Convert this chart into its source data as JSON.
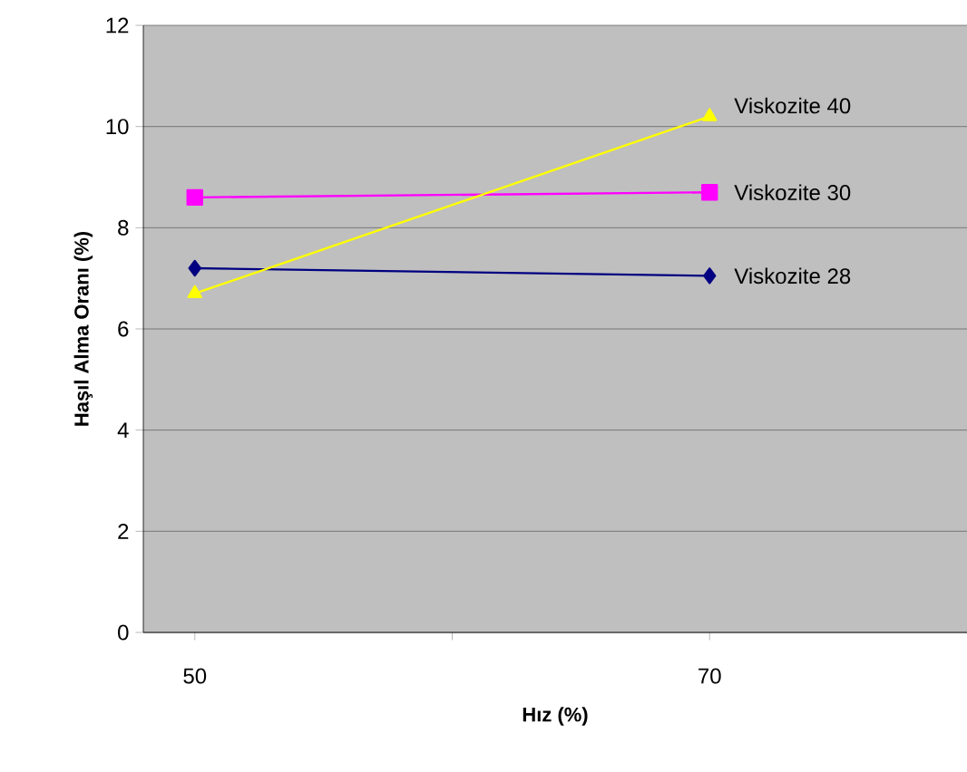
{
  "chart_data": {
    "type": "line",
    "xlabel": "Hız (%)",
    "ylabel": "Haşıl Alma Oranı (%)",
    "x": [
      50,
      70
    ],
    "series": [
      {
        "name": "Viskozite 28",
        "color": "#000080",
        "marker": "diamond",
        "values": [
          7.2,
          7.05
        ]
      },
      {
        "name": "Viskozite 30",
        "color": "#ff00ff",
        "marker": "square",
        "values": [
          8.6,
          8.7
        ]
      },
      {
        "name": "Viskozite 40",
        "color": "#ffff00",
        "marker": "triangle",
        "values": [
          6.7,
          10.2
        ]
      }
    ],
    "xlim": [
      48,
      80
    ],
    "xticks": [
      50,
      {
        "value": 60,
        "label": null
      },
      70
    ],
    "ylim": [
      0,
      12
    ],
    "yticks": [
      0,
      2,
      4,
      6,
      8,
      10,
      12
    ],
    "grid": "y",
    "legend": false
  }
}
